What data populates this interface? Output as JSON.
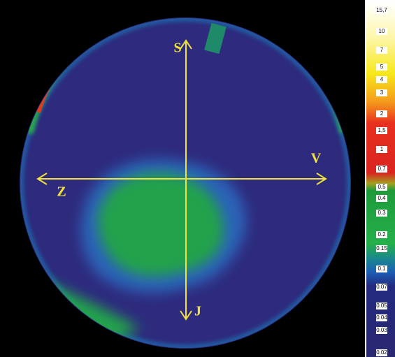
{
  "directions": {
    "north": "S",
    "east": "V",
    "west": "Z",
    "south": "J"
  },
  "scale": {
    "labels": [
      "15,7",
      "10",
      "7",
      "5",
      "4",
      "3",
      "2",
      "1,5",
      "1",
      "0.7",
      "0.5",
      "0.4",
      "0.3",
      "0.2",
      "0.15",
      "0.1",
      "0.07",
      "0.05",
      "0.04",
      "0.03",
      "0.02"
    ]
  }
}
